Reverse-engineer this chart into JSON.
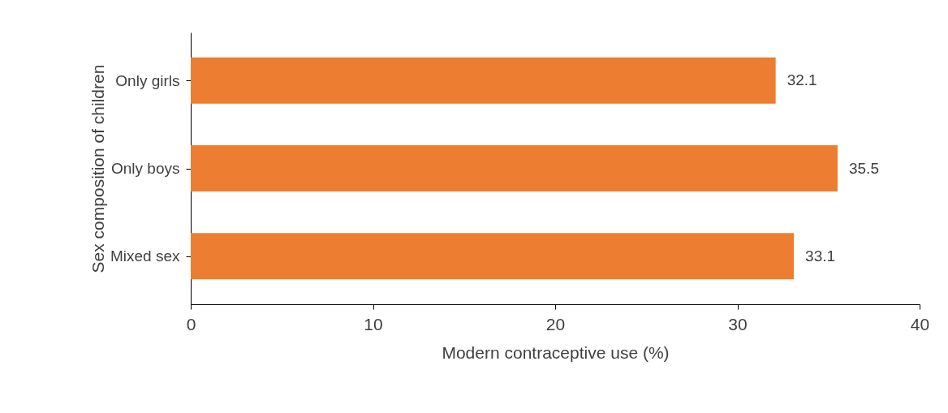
{
  "chart_data": {
    "type": "bar",
    "orientation": "horizontal",
    "categories": [
      "Only girls",
      "Only boys",
      "Mixed sex"
    ],
    "values": [
      32.1,
      35.5,
      33.1
    ],
    "color": "#ed7d31",
    "xlabel": "Modern contraceptive use (%)",
    "ylabel": "Sex composition of children",
    "xlim": [
      0,
      40
    ],
    "xticks": [
      0,
      10,
      20,
      30,
      40
    ],
    "grid": false,
    "data_labels": true
  }
}
